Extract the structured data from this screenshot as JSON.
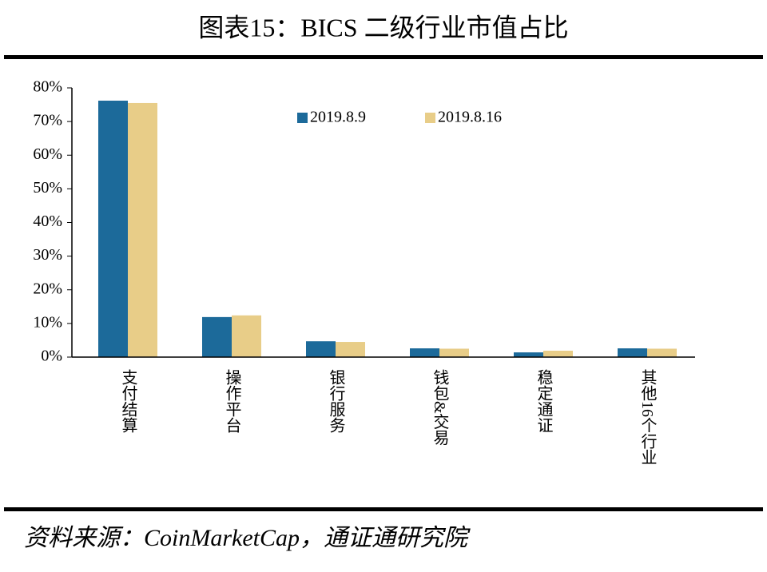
{
  "chart_data": {
    "type": "bar",
    "title": "图表15：BICS 二级行业市值占比",
    "source": "资料来源：CoinMarketCap，通证通研究院",
    "categories": [
      "支付结算",
      "操作平台",
      "银行服务",
      "钱包&交易",
      "稳定通证",
      "其他16个行业"
    ],
    "series": [
      {
        "name": "2019.8.9",
        "color": "#1c6a9a",
        "values": [
          76.2,
          11.9,
          4.7,
          2.6,
          1.4,
          2.6
        ]
      },
      {
        "name": "2019.8.16",
        "color": "#e8cd88",
        "values": [
          75.5,
          12.4,
          4.5,
          2.5,
          1.9,
          2.5
        ]
      }
    ],
    "ylim": [
      0,
      80
    ],
    "yticks": [
      {
        "value": 0,
        "label": "0%"
      },
      {
        "value": 10,
        "label": "10%"
      },
      {
        "value": 20,
        "label": "20%"
      },
      {
        "value": 30,
        "label": "30%"
      },
      {
        "value": 40,
        "label": "40%"
      },
      {
        "value": 50,
        "label": "50%"
      },
      {
        "value": 60,
        "label": "60%"
      },
      {
        "value": 70,
        "label": "70%"
      },
      {
        "value": 80,
        "label": "80%"
      }
    ],
    "grid": false,
    "legend": "top"
  }
}
